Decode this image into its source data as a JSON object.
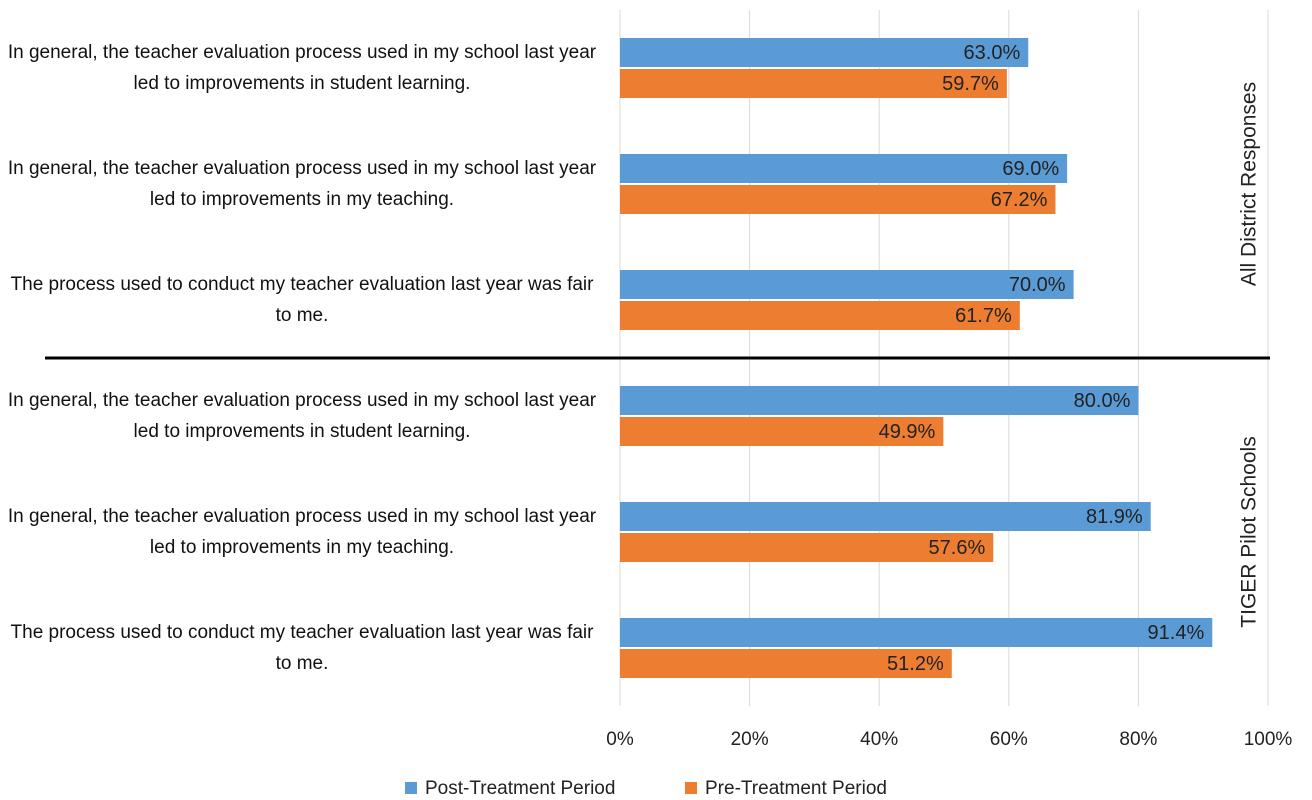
{
  "chart_data": {
    "type": "bar",
    "orientation": "horizontal",
    "groups": [
      "All District Responses",
      "TIGER Pilot Schools"
    ],
    "categories": [
      "In general, the teacher evaluation process used in my school last year led to improvements in student learning.",
      "In general, the teacher evaluation process used in my school last year led to improvements in my teaching.",
      "The process used to conduct my teacher evaluation last year was fair to me.",
      "In general, the teacher evaluation process used in my school last year led to improvements in student learning.",
      "In general, the teacher evaluation process used in my school last year led to improvements in my teaching.",
      "The process used to conduct my teacher evaluation last year was fair to me."
    ],
    "series": [
      {
        "name": "Post-Treatment Period",
        "color": "#5b9bd5",
        "values": [
          63.0,
          69.0,
          70.0,
          80.0,
          81.9,
          91.4
        ],
        "value_labels": [
          "63.0%",
          "69.0%",
          "70.0%",
          "80.0%",
          "81.9%",
          "91.4%"
        ]
      },
      {
        "name": "Pre-Treatment Period",
        "color": "#ed7d31",
        "values": [
          59.7,
          67.2,
          61.7,
          49.9,
          57.6,
          51.2
        ],
        "value_labels": [
          "59.7%",
          "67.2%",
          "61.7%",
          "49.9%",
          "57.6%",
          "51.2%"
        ]
      }
    ],
    "xlim": [
      0,
      100
    ],
    "xticks": [
      {
        "value": 0,
        "label": "0%"
      },
      {
        "value": 20,
        "label": "20%"
      },
      {
        "value": 40,
        "label": "40%"
      },
      {
        "value": 60,
        "label": "60%"
      },
      {
        "value": 80,
        "label": "80%"
      },
      {
        "value": 100,
        "label": "100%"
      }
    ],
    "grid": true,
    "legend": "bottom"
  }
}
